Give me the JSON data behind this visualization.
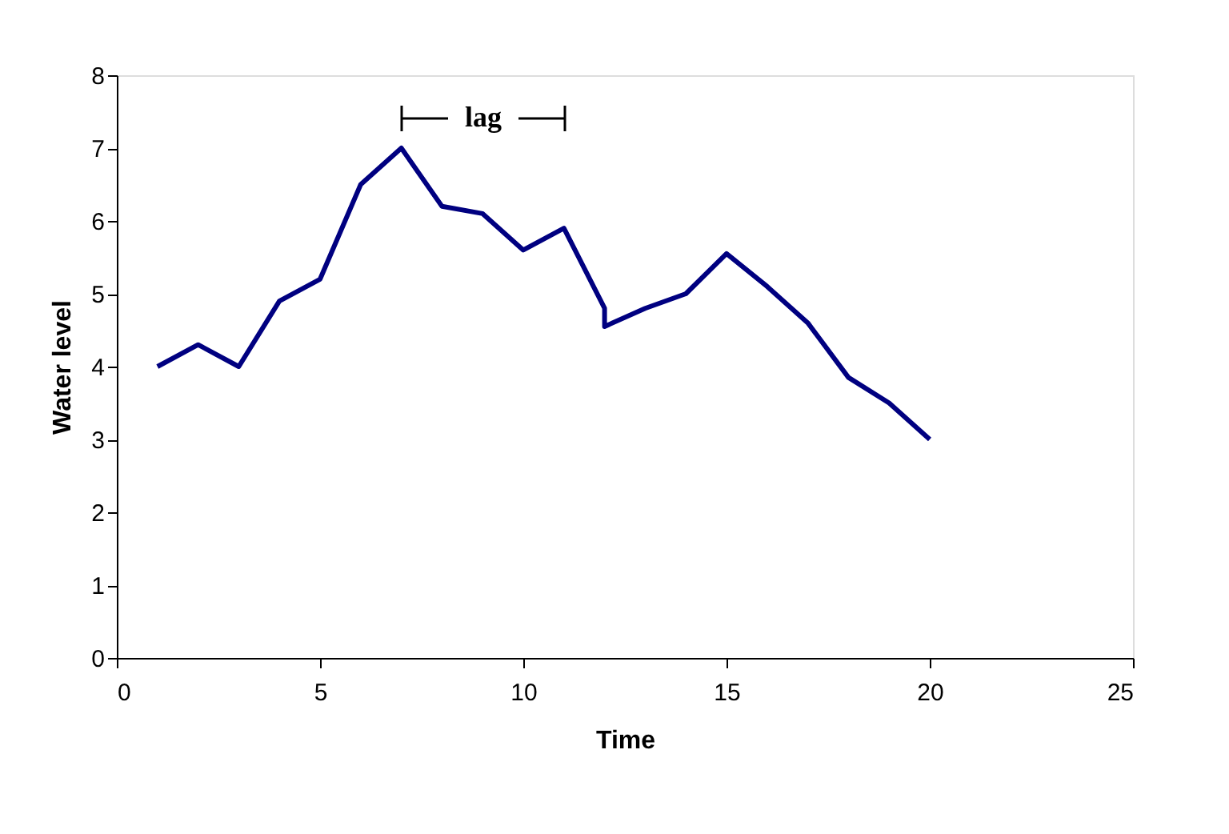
{
  "chart_data": {
    "type": "line",
    "xlabel": "Time",
    "ylabel": "Water level",
    "x": [
      1,
      2,
      3,
      4,
      5,
      6,
      7,
      8,
      9,
      10,
      11,
      12,
      12,
      13,
      14,
      15,
      16,
      17,
      18,
      19,
      20
    ],
    "series": [
      {
        "color": "#000080",
        "values": [
          4.0,
          4.3,
          4.0,
          4.9,
          5.2,
          6.5,
          7.0,
          6.2,
          6.1,
          5.6,
          5.9,
          4.8,
          4.55,
          4.8,
          5.0,
          5.55,
          5.1,
          4.6,
          3.85,
          3.5,
          3.0
        ]
      }
    ],
    "xlim": [
      0,
      25
    ],
    "xticks": [
      0,
      5,
      10,
      15,
      20,
      25
    ],
    "ylim": [
      0,
      8
    ],
    "yticks": [
      0,
      1,
      2,
      3,
      4,
      5,
      6,
      7,
      8
    ],
    "annotations": [
      "lag"
    ],
    "grid": false,
    "marker": "none",
    "line_style": "solid"
  }
}
